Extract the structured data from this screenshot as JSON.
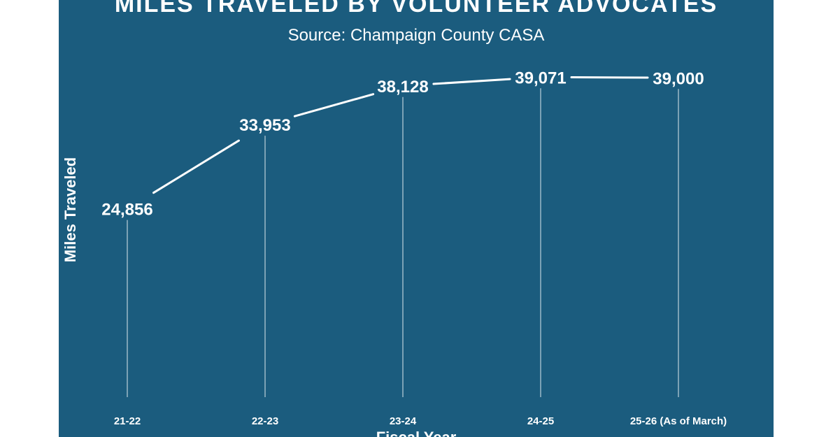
{
  "chart_data": {
    "type": "line",
    "title": "MILES TRAVELED BY VOLUNTEER ADVOCATES",
    "subtitle": "Source: Champaign County CASA",
    "xlabel": "Fiscal Year",
    "ylabel": "Miles Traveled",
    "categories": [
      "21-22",
      "22-23",
      "23-24",
      "24-25",
      "25-26 (As of March)"
    ],
    "values": [
      24856,
      33953,
      38128,
      39071,
      39000
    ],
    "data_labels": [
      "24,856",
      "33,953",
      "38,128",
      "39,071",
      "39,000"
    ],
    "ylim": [
      0,
      45000
    ],
    "grid": false,
    "legend": "none"
  },
  "colors": {
    "background": "#1b5c7e",
    "line": "#ffffff",
    "text": "#ffffff"
  }
}
